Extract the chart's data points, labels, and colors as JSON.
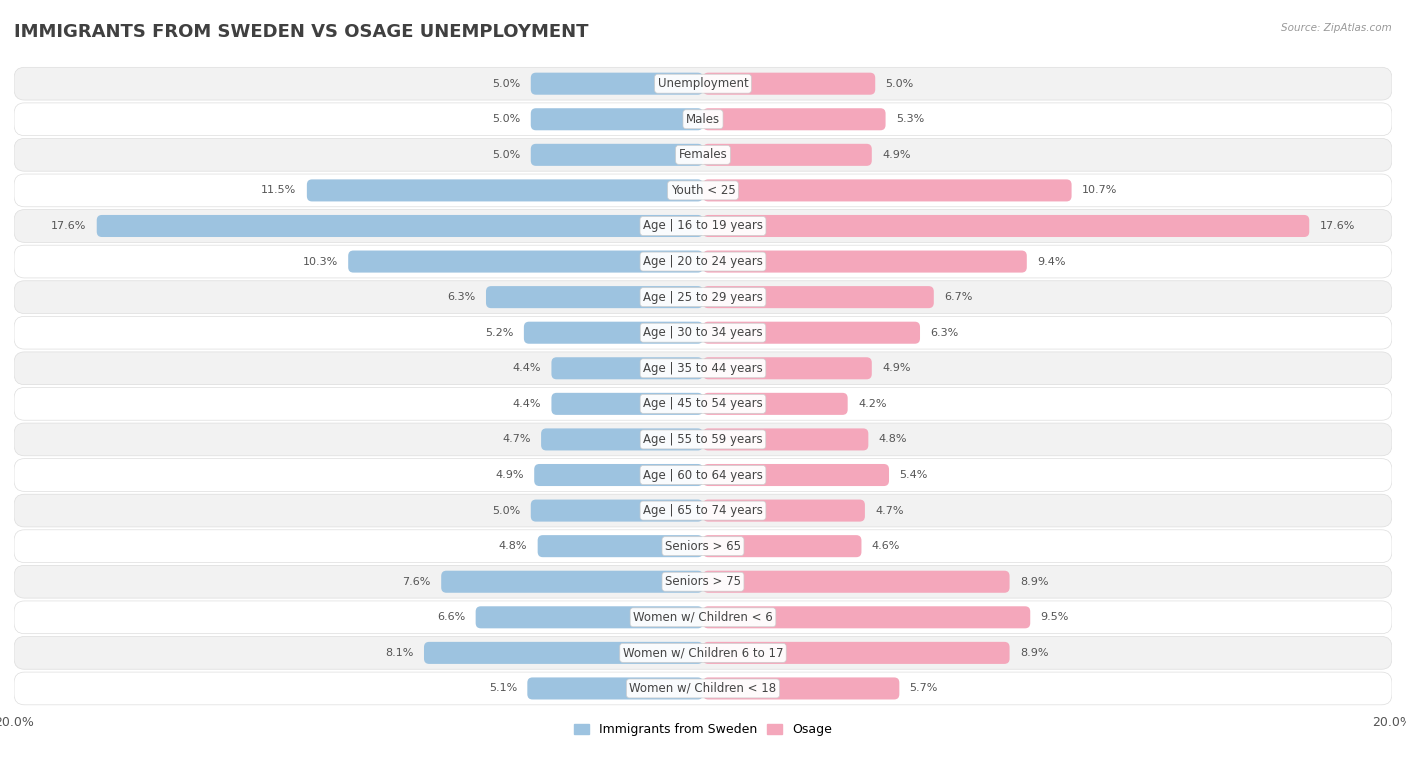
{
  "title": "IMMIGRANTS FROM SWEDEN VS OSAGE UNEMPLOYMENT",
  "source": "Source: ZipAtlas.com",
  "categories": [
    "Unemployment",
    "Males",
    "Females",
    "Youth < 25",
    "Age | 16 to 19 years",
    "Age | 20 to 24 years",
    "Age | 25 to 29 years",
    "Age | 30 to 34 years",
    "Age | 35 to 44 years",
    "Age | 45 to 54 years",
    "Age | 55 to 59 years",
    "Age | 60 to 64 years",
    "Age | 65 to 74 years",
    "Seniors > 65",
    "Seniors > 75",
    "Women w/ Children < 6",
    "Women w/ Children 6 to 17",
    "Women w/ Children < 18"
  ],
  "left_values": [
    5.0,
    5.0,
    5.0,
    11.5,
    17.6,
    10.3,
    6.3,
    5.2,
    4.4,
    4.4,
    4.7,
    4.9,
    5.0,
    4.8,
    7.6,
    6.6,
    8.1,
    5.1
  ],
  "right_values": [
    5.0,
    5.3,
    4.9,
    10.7,
    17.6,
    9.4,
    6.7,
    6.3,
    4.9,
    4.2,
    4.8,
    5.4,
    4.7,
    4.6,
    8.9,
    9.5,
    8.9,
    5.7
  ],
  "left_color": "#9dc3e0",
  "right_color": "#f4a7bb",
  "left_color_bright": "#5b9bd5",
  "right_color_bright": "#f06090",
  "left_label": "Immigrants from Sweden",
  "right_label": "Osage",
  "axis_max": 20.0,
  "background_color": "#ffffff",
  "row_bg_odd": "#f2f2f2",
  "row_bg_even": "#ffffff",
  "title_fontsize": 13,
  "label_fontsize": 8.5,
  "value_fontsize": 8
}
